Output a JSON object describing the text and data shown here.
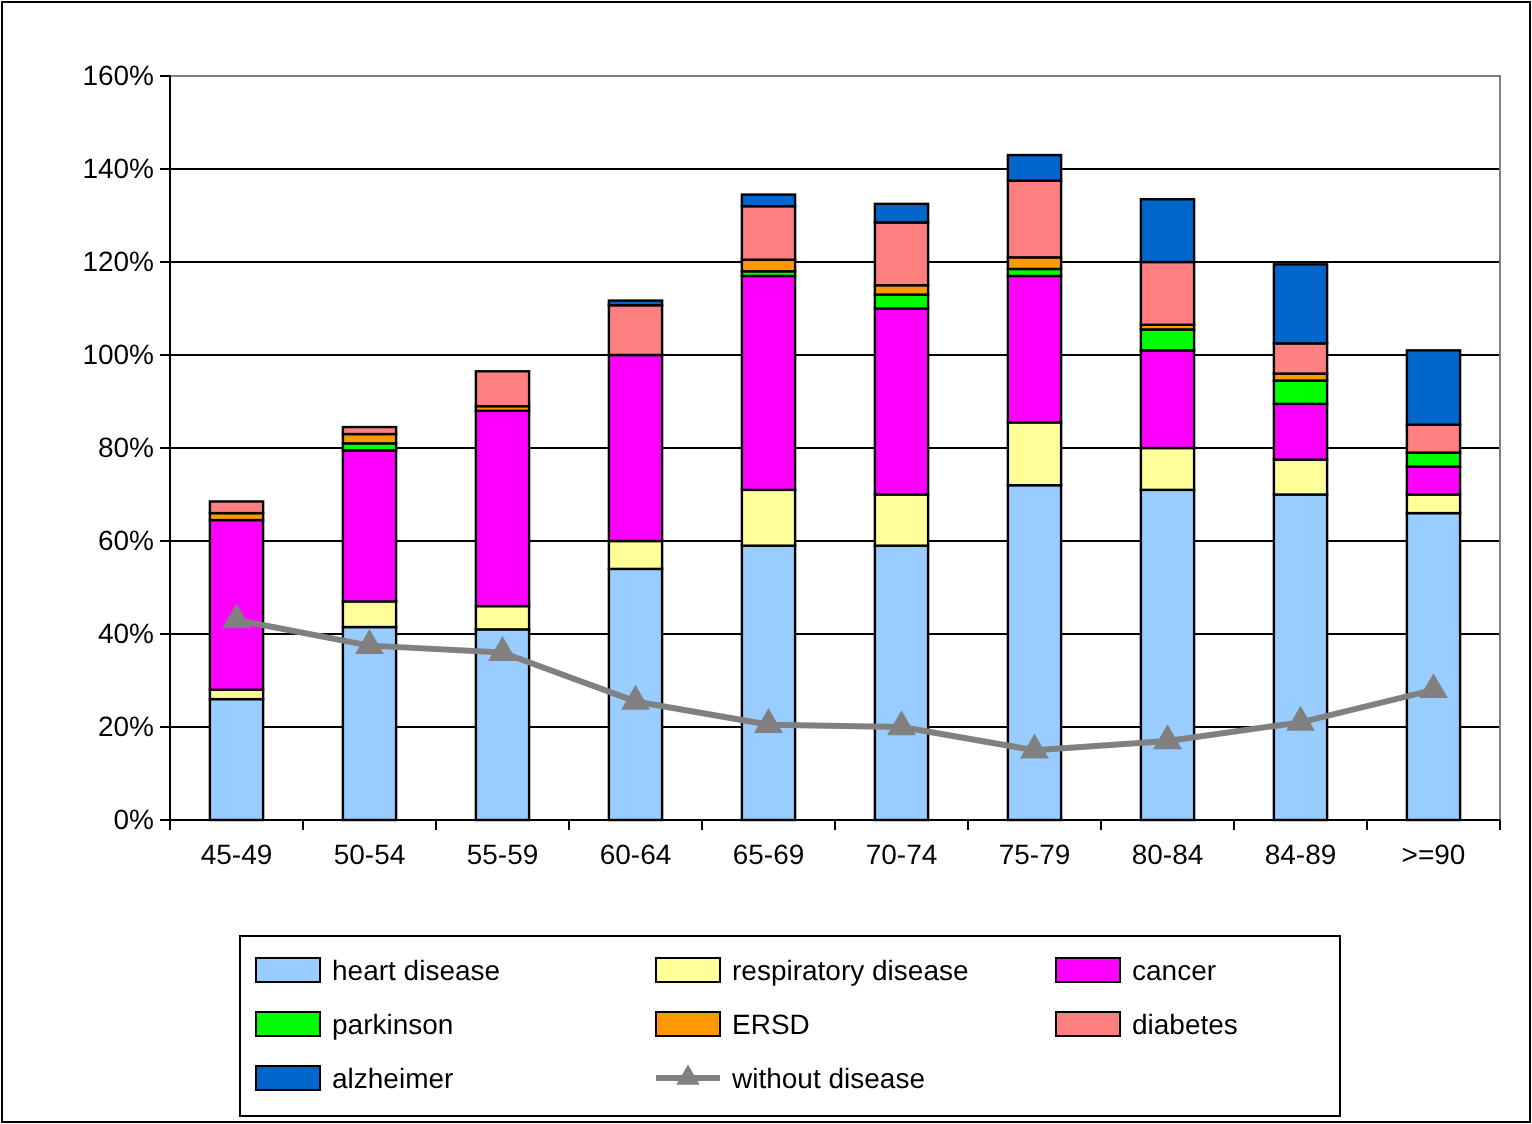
{
  "chart_data": {
    "type": "bar",
    "stacked": true,
    "categories": [
      "45-49",
      "50-54",
      "55-59",
      "60-64",
      "65-69",
      "70-74",
      "75-79",
      "80-84",
      "84-89",
      ">=90"
    ],
    "ylim": [
      0,
      160
    ],
    "yticks": [
      {
        "value": 0,
        "label": "0%"
      },
      {
        "value": 20,
        "label": "20%"
      },
      {
        "value": 40,
        "label": "40%"
      },
      {
        "value": 60,
        "label": "60%"
      },
      {
        "value": 80,
        "label": "80%"
      },
      {
        "value": 100,
        "label": "100%"
      },
      {
        "value": 120,
        "label": "120%"
      },
      {
        "value": 140,
        "label": "140%"
      },
      {
        "value": 160,
        "label": "160%"
      }
    ],
    "grid": "y",
    "legend": "bottom",
    "series": [
      {
        "name": "heart disease",
        "color": "#99ccff",
        "values": [
          26,
          41.5,
          41,
          54,
          59,
          59,
          72,
          71,
          70,
          66
        ]
      },
      {
        "name": "respiratory disease",
        "color": "#ffff99",
        "values": [
          2,
          5.5,
          5,
          6,
          12,
          11,
          13.5,
          9,
          7.5,
          4
        ]
      },
      {
        "name": "cancer",
        "color": "#ff00ff",
        "values": [
          36.5,
          32.5,
          42,
          40,
          46,
          40,
          31.5,
          21,
          12,
          6
        ]
      },
      {
        "name": "parkinson",
        "color": "#00ff00",
        "values": [
          null,
          1.5,
          null,
          0,
          1,
          3,
          1.5,
          4.5,
          5,
          3
        ]
      },
      {
        "name": "ERSD",
        "color": "#ff9900",
        "values": [
          1.5,
          2,
          1,
          null,
          2.5,
          2,
          2.5,
          1,
          1.5,
          0
        ]
      },
      {
        "name": "diabetes",
        "color": "#ff8080",
        "values": [
          2.5,
          1.5,
          7.5,
          10.7,
          11.5,
          13.5,
          16.5,
          13.5,
          6.5,
          6
        ]
      },
      {
        "name": "alzheimer",
        "color": "#0066cc",
        "values": [
          0,
          0,
          0,
          1,
          2.5,
          4,
          5.5,
          13.5,
          17,
          16
        ]
      },
      {
        "name": "without disease",
        "type": "line",
        "color": "#808080",
        "marker": "triangle",
        "values": [
          43,
          37.5,
          36,
          25.5,
          20.5,
          20,
          15,
          17,
          21,
          28
        ]
      }
    ]
  }
}
